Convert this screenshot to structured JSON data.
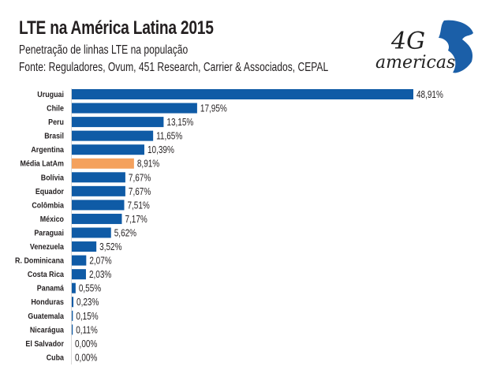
{
  "header": {
    "title": "LTE na América Latina 2015",
    "subtitle": "Penetração de linhas LTE na população",
    "source": "Fonte: Reguladores, Ovum, 451 Research, Carrier & Associados, CEPAL"
  },
  "logo": {
    "text": "4G americas"
  },
  "chart_data": {
    "type": "bar",
    "orientation": "horizontal",
    "title": "LTE na América Latina 2015",
    "subtitle": "Penetração de linhas LTE na população",
    "categories": [
      "Uruguai",
      "Chile",
      "Peru",
      "Brasil",
      "Argentina",
      "Média LatAm",
      "Bolívia",
      "Equador",
      "Colômbia",
      "México",
      "Paraguai",
      "Venezuela",
      "R. Dominicana",
      "Costa Rica",
      "Panamá",
      "Honduras",
      "Guatemala",
      "Nicarágua",
      "El Salvador",
      "Cuba"
    ],
    "values": [
      48.91,
      17.95,
      13.15,
      11.65,
      10.39,
      8.91,
      7.67,
      7.67,
      7.51,
      7.17,
      5.62,
      3.52,
      2.07,
      2.03,
      0.55,
      0.23,
      0.15,
      0.11,
      0.0,
      0.0
    ],
    "labels": [
      "48,91%",
      "17,95%",
      "13,15%",
      "11,65%",
      "10,39%",
      "8,91%",
      "7,67%",
      "7,67%",
      "7,51%",
      "7,17%",
      "5,62%",
      "3,52%",
      "2,07%",
      "2,03%",
      "0,55%",
      "0,23%",
      "0,15%",
      "0,11%",
      "0,00%",
      "0,00%"
    ],
    "highlight": "Média LatAm",
    "colors": {
      "bar": "#0f5ba6",
      "highlight": "#f4a15d"
    },
    "grid": false
  }
}
